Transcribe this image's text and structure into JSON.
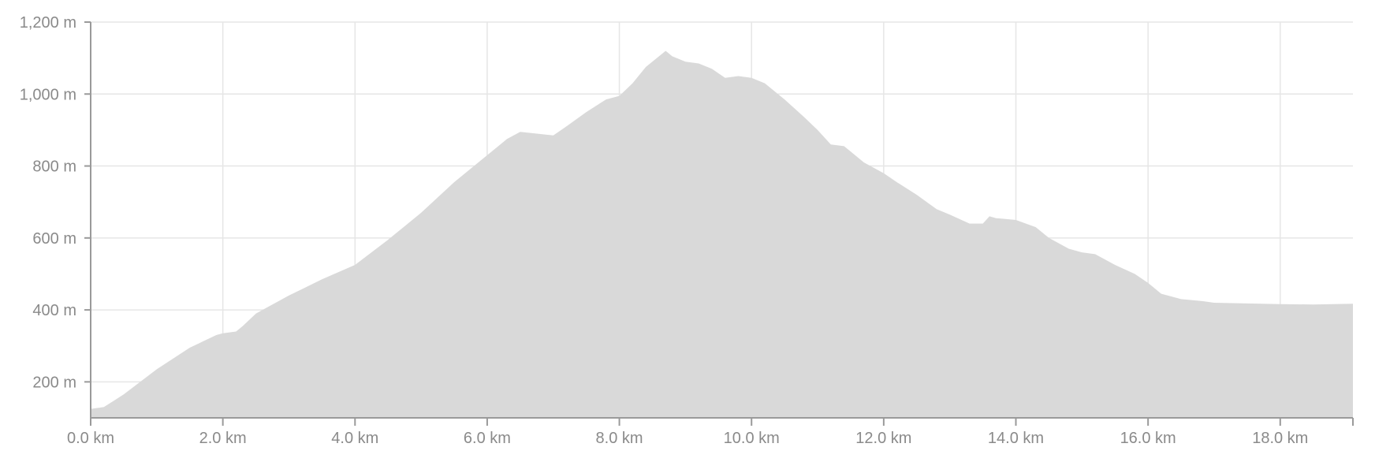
{
  "chart_data": {
    "type": "area",
    "title": "",
    "xlabel": "",
    "ylabel": "",
    "x_unit": "km",
    "y_unit": "m",
    "xlim": [
      0,
      19.1
    ],
    "ylim": [
      100,
      1200
    ],
    "grid": true,
    "x_ticks": [
      0,
      2,
      4,
      6,
      8,
      10,
      12,
      14,
      16,
      18
    ],
    "x_tick_labels": [
      "0.0 km",
      "2.0 km",
      "4.0 km",
      "6.0 km",
      "8.0 km",
      "10.0 km",
      "12.0 km",
      "14.0 km",
      "16.0 km",
      "18.0 km"
    ],
    "y_ticks": [
      200,
      400,
      600,
      800,
      1000,
      1200
    ],
    "y_tick_labels": [
      "200 m",
      "400 m",
      "600 m",
      "800 m",
      "1,000 m",
      "1,200 m"
    ],
    "colors": {
      "fill": "#d9d9d9",
      "grid": "#e6e6e6",
      "axis": "#9a9a9a",
      "text": "#8a8a8a"
    },
    "series": [
      {
        "x": [
          0,
          0.2,
          0.5,
          1.0,
          1.5,
          1.9,
          2.0,
          2.2,
          2.3,
          2.5,
          2.6,
          3.0,
          3.5,
          4.0,
          4.5,
          5.0,
          5.5,
          6.0,
          6.3,
          6.5,
          7.0,
          7.2,
          7.5,
          7.8,
          8.0,
          8.2,
          8.4,
          8.7,
          8.8,
          9.0,
          9.2,
          9.4,
          9.6,
          9.8,
          10.0,
          10.2,
          10.5,
          10.8,
          11.0,
          11.2,
          11.4,
          11.5,
          11.7,
          12.0,
          12.2,
          12.5,
          12.8,
          13.0,
          13.3,
          13.5,
          13.6,
          13.7,
          14.0,
          14.3,
          14.5,
          14.8,
          15.0,
          15.2,
          15.5,
          15.8,
          16.0,
          16.2,
          16.5,
          16.8,
          17.0,
          17.5,
          18.0,
          18.5,
          19.1
        ],
        "values": [
          125,
          130,
          165,
          235,
          295,
          330,
          335,
          340,
          355,
          390,
          400,
          440,
          485,
          525,
          595,
          670,
          755,
          830,
          875,
          895,
          885,
          910,
          950,
          985,
          995,
          1030,
          1075,
          1120,
          1105,
          1090,
          1085,
          1070,
          1045,
          1050,
          1045,
          1030,
          985,
          935,
          900,
          860,
          855,
          840,
          810,
          780,
          755,
          720,
          680,
          665,
          640,
          640,
          660,
          655,
          650,
          630,
          600,
          570,
          560,
          555,
          525,
          500,
          475,
          445,
          430,
          425,
          420,
          418,
          416,
          415,
          417
        ]
      }
    ]
  }
}
